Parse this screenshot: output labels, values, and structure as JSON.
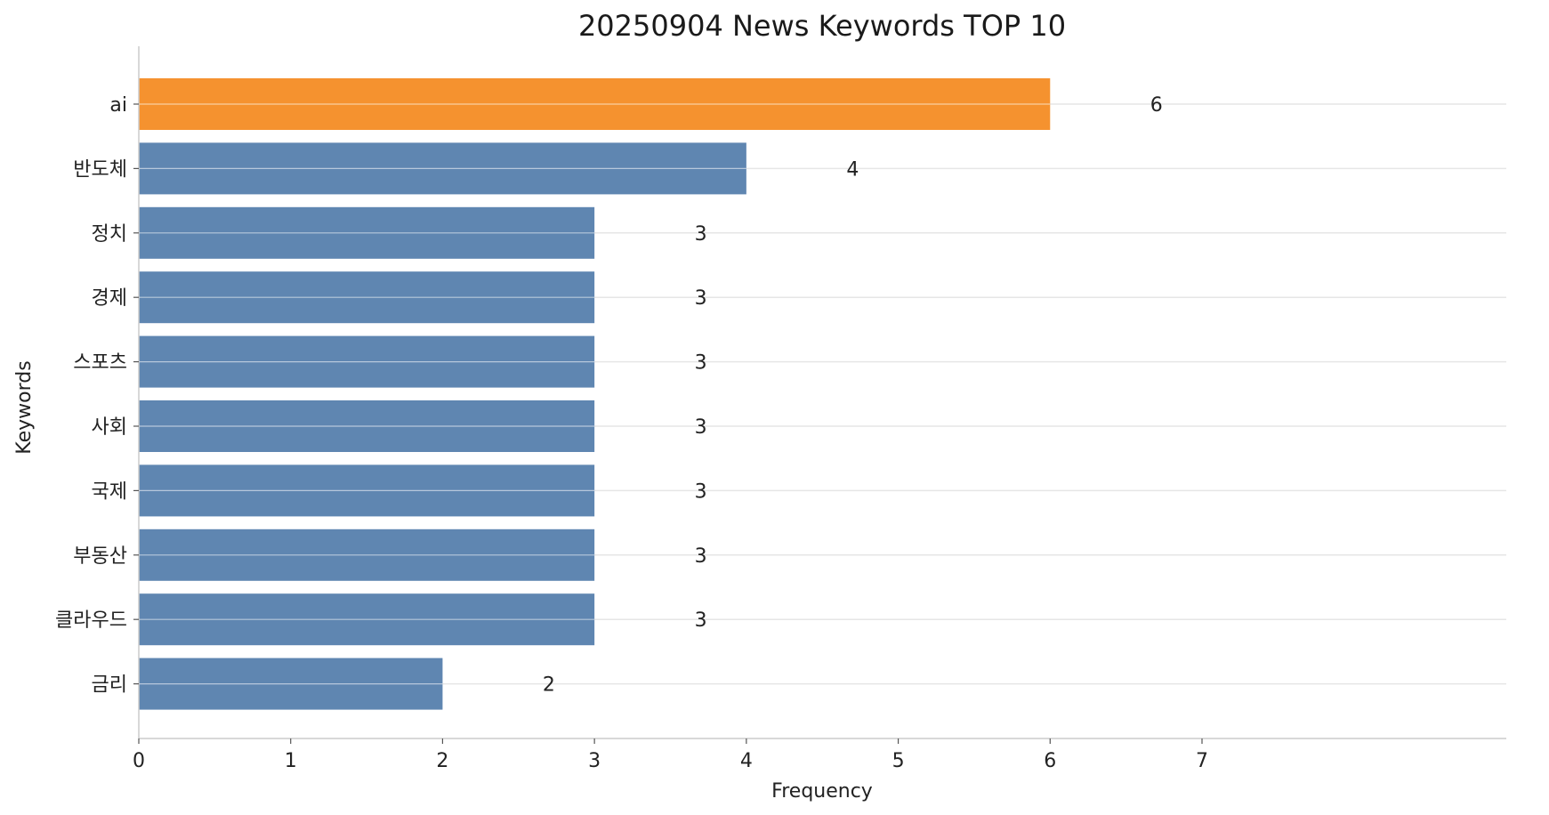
{
  "chart_data": {
    "type": "bar",
    "orientation": "horizontal",
    "title": "20250904 News Keywords TOP 10",
    "xlabel": "Frequency",
    "ylabel": "Keywords",
    "categories": [
      "ai",
      "반도체",
      "정치",
      "경제",
      "스포츠",
      "사회",
      "국제",
      "부동산",
      "클라우드",
      "금리"
    ],
    "values": [
      6,
      4,
      3,
      3,
      3,
      3,
      3,
      3,
      3,
      2
    ],
    "data_labels": [
      "6",
      "4",
      "3",
      "3",
      "3",
      "3",
      "3",
      "3",
      "3",
      "2"
    ],
    "xticks": [
      "0",
      "1",
      "2",
      "3",
      "4",
      "5",
      "6",
      "7"
    ],
    "xlim": [
      0,
      7.9
    ],
    "grid": "horizontal",
    "highlight_index": 0,
    "colors": {
      "highlight": "#f5922f",
      "bar": "#5f86b1",
      "grid": "#e6e6e6",
      "axis": "#cccccc"
    }
  }
}
